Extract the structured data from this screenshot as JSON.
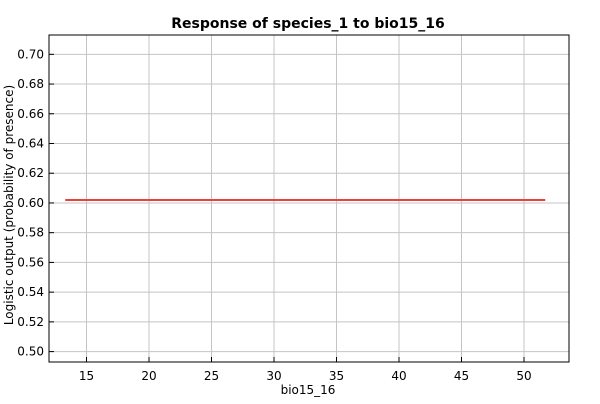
{
  "chart_data": {
    "type": "line",
    "title": "Response of species_1 to bio15_16",
    "xlabel": "bio15_16",
    "ylabel": "Logistic output (probability of presence)",
    "xlim": [
      12,
      53.6
    ],
    "ylim": [
      0.493,
      0.713
    ],
    "xticks": [
      15,
      20,
      25,
      30,
      35,
      40,
      45,
      50
    ],
    "yticks": [
      0.5,
      0.52,
      0.54,
      0.56,
      0.58,
      0.6,
      0.62,
      0.64,
      0.66,
      0.68,
      0.7
    ],
    "grid": true,
    "series": [
      {
        "x": [
          13.3,
          51.7
        ],
        "y": [
          0.602,
          0.602
        ],
        "color": "#e8433a"
      }
    ]
  }
}
